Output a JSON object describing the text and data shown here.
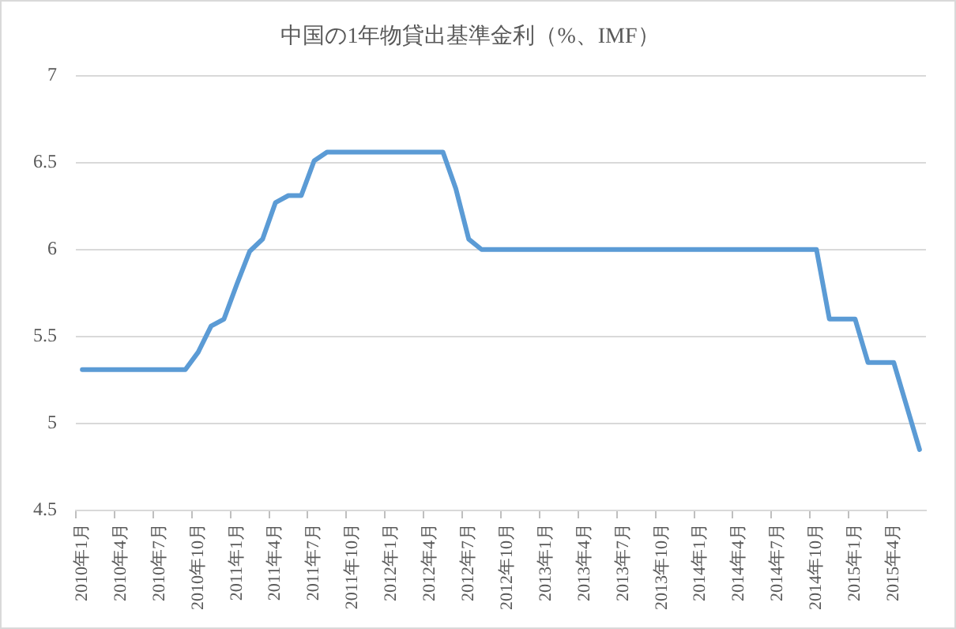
{
  "chart_data": {
    "type": "line",
    "title": "中国の1年物貸出基準金利（%、IMF）",
    "categories": [
      "2010年1月",
      null,
      null,
      "2010年4月",
      null,
      null,
      "2010年7月",
      null,
      null,
      "2010年10月",
      null,
      null,
      "2011年1月",
      null,
      null,
      "2011年4月",
      null,
      null,
      "2011年7月",
      null,
      null,
      "2011年10月",
      null,
      null,
      "2012年1月",
      null,
      null,
      "2012年4月",
      null,
      null,
      "2012年7月",
      null,
      null,
      "2012年10月",
      null,
      null,
      "2013年1月",
      null,
      null,
      "2013年4月",
      null,
      null,
      "2013年7月",
      null,
      null,
      "2013年10月",
      null,
      null,
      "2014年1月",
      null,
      null,
      "2014年4月",
      null,
      null,
      "2014年7月",
      null,
      null,
      "2014年10月",
      null,
      null,
      "2015年1月",
      null,
      null,
      "2015年4月",
      null,
      null
    ],
    "series": [
      {
        "color": "#5b9bd5",
        "values": [
          5.31,
          5.31,
          5.31,
          5.31,
          5.31,
          5.31,
          5.31,
          5.31,
          5.31,
          5.41,
          5.56,
          5.6,
          5.8,
          5.99,
          6.06,
          6.27,
          6.31,
          6.31,
          6.51,
          6.56,
          6.56,
          6.56,
          6.56,
          6.56,
          6.56,
          6.56,
          6.56,
          6.56,
          6.56,
          6.35,
          6.06,
          6,
          6,
          6,
          6,
          6,
          6,
          6,
          6,
          6,
          6,
          6,
          6,
          6,
          6,
          6,
          6,
          6,
          6,
          6,
          6,
          6,
          6,
          6,
          6,
          6,
          6,
          6,
          5.6,
          5.6,
          5.6,
          5.35,
          5.35,
          5.35,
          5.1,
          4.85
        ]
      }
    ],
    "ylim": [
      4.5,
      7
    ],
    "yticks": [
      4.5,
      5,
      5.5,
      6,
      6.5,
      7
    ],
    "grid": "y",
    "marker": "none",
    "line_style": "solid"
  }
}
